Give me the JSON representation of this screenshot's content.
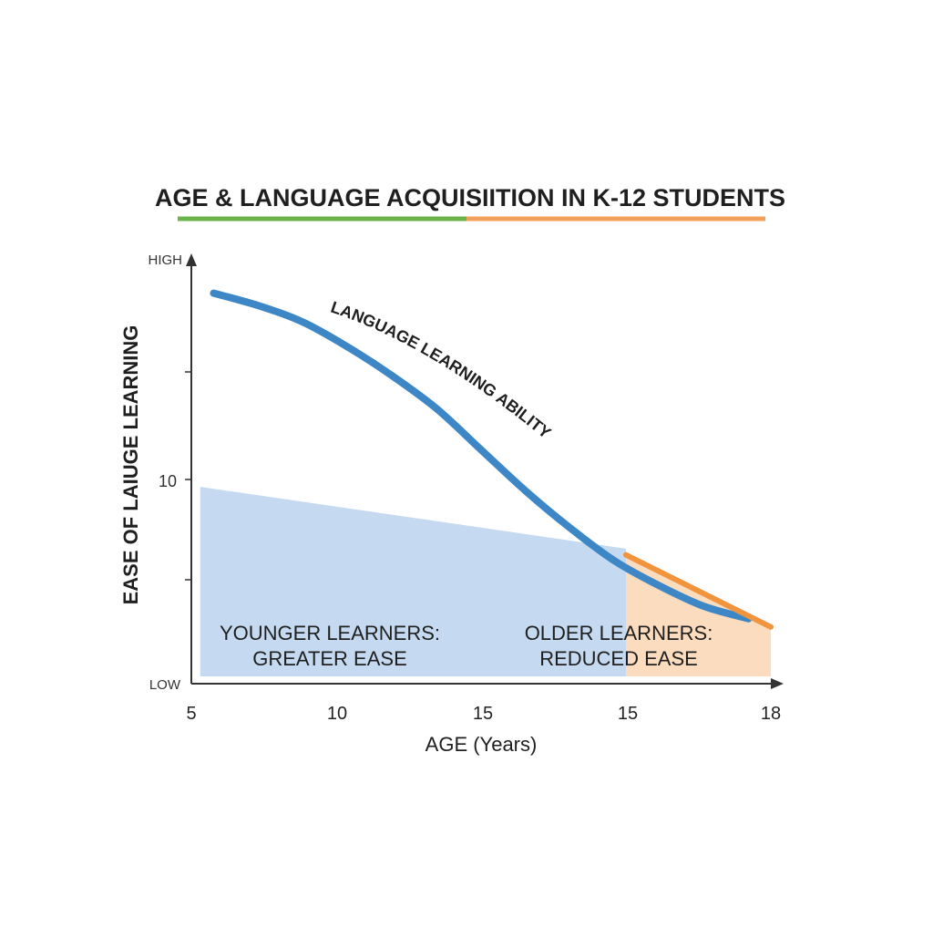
{
  "chart_data": {
    "type": "line",
    "title": "AGE & LANGUAGE ACQUISIITION IN K-12 STUDENTS",
    "title_underline_colors": [
      "#6ab34a",
      "#f2a05a"
    ],
    "xlabel": "AGE (Years)",
    "ylabel": "EASE OF LAIUGE LEARNING",
    "x_tick_labels": [
      "5",
      "10",
      "15",
      "15",
      "18"
    ],
    "y_tick_labels": [
      "HIGH",
      "10",
      "LOW"
    ],
    "xlim": [
      5,
      18
    ],
    "ylim": [
      0,
      100
    ],
    "series": [
      {
        "name": "LANGUAGE LEARNING ABILITY",
        "color": "#3d87c6",
        "x": [
          5.5,
          6.5,
          7.5,
          8.5,
          9.5,
          10.5,
          11.5,
          12.5,
          13.5,
          14.5,
          15.5,
          16.5,
          17.5
        ],
        "y": [
          93,
          90,
          86,
          80,
          73,
          65,
          55,
          45,
          36,
          28,
          22,
          17,
          14
        ]
      },
      {
        "name": "",
        "color": "#f0943e",
        "x": [
          14.75,
          18
        ],
        "y": [
          29.5,
          12
        ]
      }
    ],
    "regions": [
      {
        "label_line1": "YOUNGER LEARNERS:",
        "label_line2": "GREATER EASE",
        "color": "#c5daf0",
        "x": [
          5.2,
          14.75
        ],
        "y_start": 46,
        "y_end": 31
      },
      {
        "label_line1": "OLDER LEARNERS:",
        "label_line2": "REDUCED EASE",
        "color": "#fbdcbf",
        "x": [
          14.75,
          18
        ],
        "y_start": 29.5,
        "y_end": 12
      }
    ],
    "legend": "none",
    "grid": false
  }
}
